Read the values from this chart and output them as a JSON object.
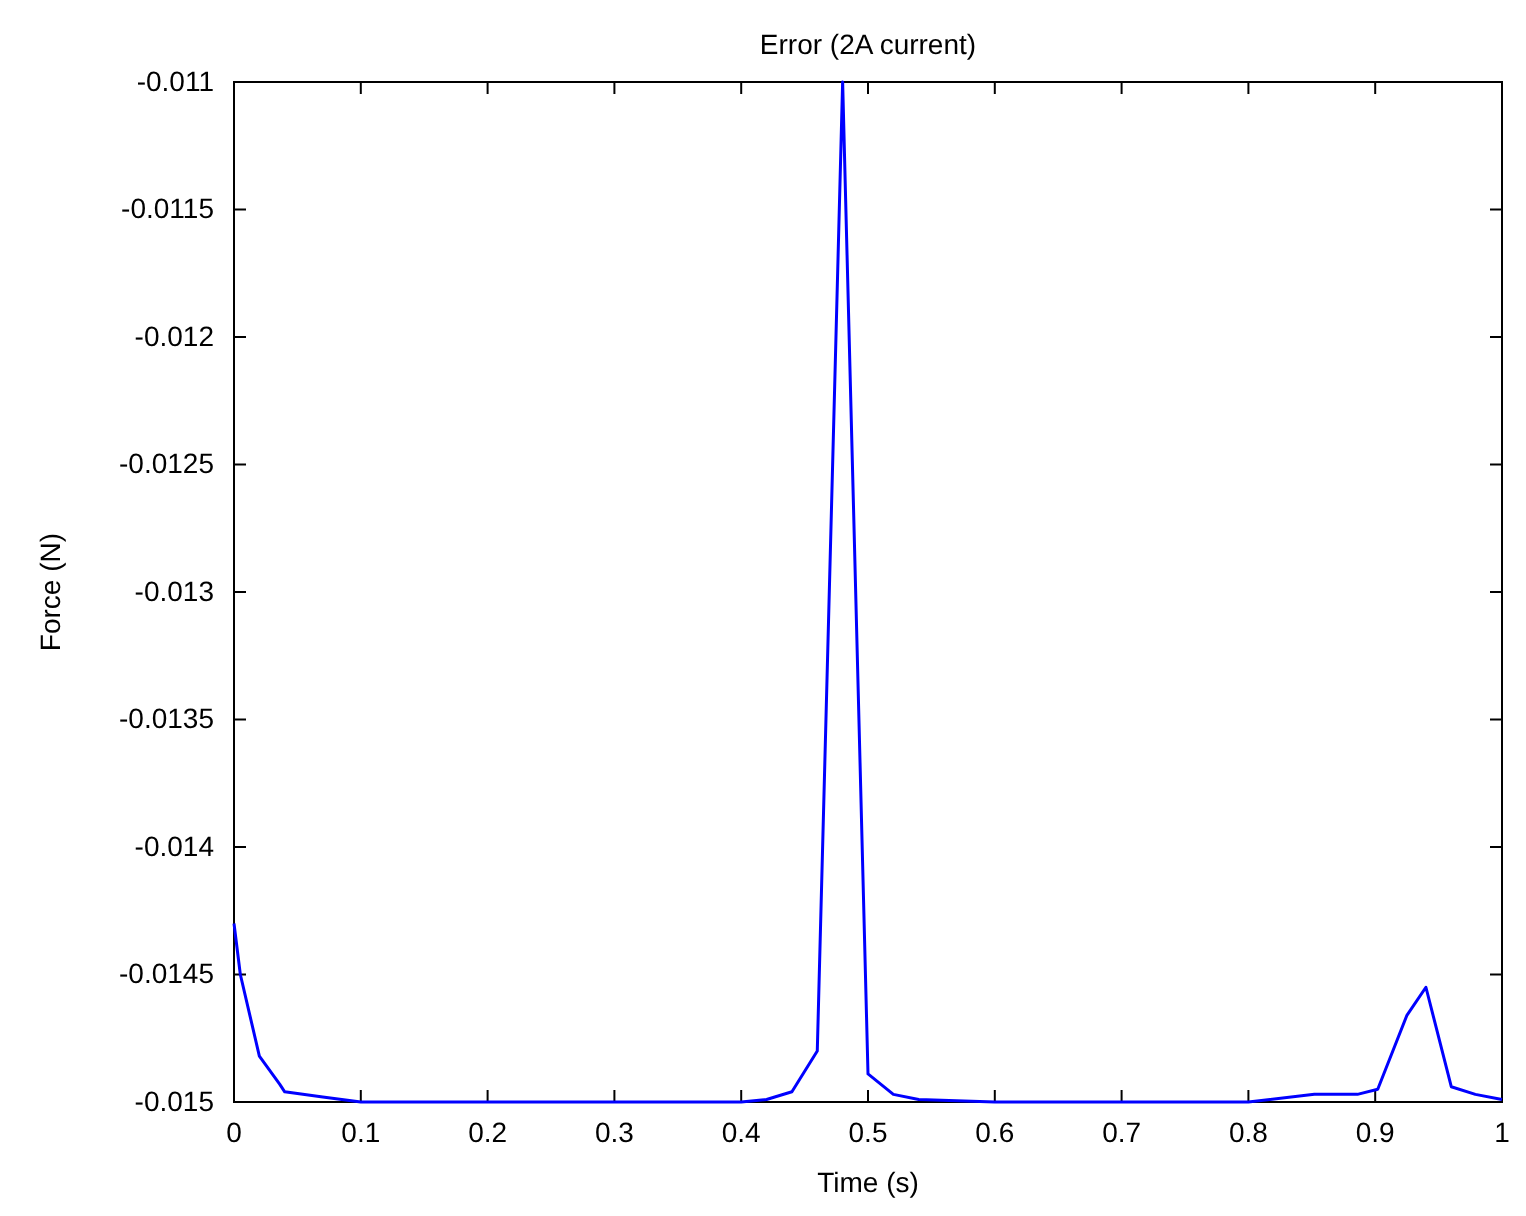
{
  "chart_data": {
    "type": "line",
    "title": "Error (2A current)",
    "xlabel": "Time (s)",
    "ylabel": "Force (N)",
    "xlim": [
      0,
      1
    ],
    "xticks": [
      0,
      0.1,
      0.2,
      0.3,
      0.4,
      0.5,
      0.6,
      0.7,
      0.8,
      0.9,
      1
    ],
    "ylim": [
      -0.015,
      -0.011
    ],
    "yticks": [
      -0.015,
      -0.0145,
      -0.014,
      -0.0135,
      -0.013,
      -0.0125,
      -0.012,
      -0.0115,
      -0.011
    ],
    "grid": false,
    "line_style": "solid",
    "marker": "none",
    "series": [
      {
        "color": "#0000ff",
        "x": [
          0,
          0.005,
          0.02,
          0.036,
          0.04,
          0.07,
          0.1,
          0.2,
          0.3,
          0.4,
          0.42,
          0.44,
          0.46,
          0.48,
          0.5,
          0.52,
          0.54,
          0.6,
          0.7,
          0.8,
          0.852,
          0.886,
          0.902,
          0.925,
          0.94,
          0.96,
          0.979,
          1
        ],
        "values": [
          -0.0143,
          -0.0145,
          -0.01482,
          -0.01493,
          -0.01496,
          -0.01498,
          -0.015,
          -0.015,
          -0.015,
          -0.015,
          -0.01499,
          -0.01496,
          -0.0148,
          -0.011,
          -0.01489,
          -0.01497,
          -0.01499,
          -0.015,
          -0.015,
          -0.015,
          -0.01497,
          -0.01497,
          -0.01495,
          -0.01466,
          -0.01455,
          -0.01494,
          -0.01497,
          -0.01499
        ]
      }
    ]
  }
}
